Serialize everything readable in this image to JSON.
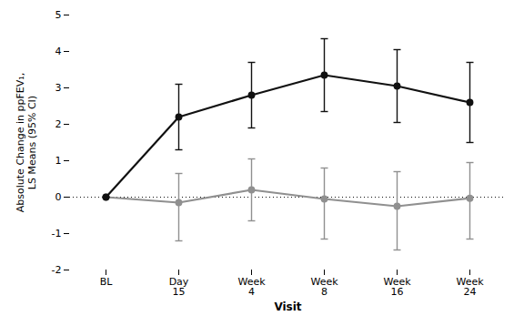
{
  "chart_data": {
    "type": "line",
    "categories": [
      "BL",
      "Day\n15",
      "Week\n4",
      "Week\n8",
      "Week\n16",
      "Week\n24"
    ],
    "series": [
      {
        "color": "#909090",
        "marker": "circle",
        "line_style": "solid",
        "values": [
          0.0,
          -0.15,
          0.2,
          -0.05,
          -0.25,
          -0.03
        ],
        "upper": [
          0.0,
          0.65,
          1.05,
          0.8,
          0.7,
          0.95
        ],
        "lower": [
          0.0,
          -1.2,
          -0.65,
          -1.15,
          -1.45,
          -1.15
        ]
      },
      {
        "color": "#111111",
        "marker": "circle",
        "line_style": "solid",
        "values": [
          0.0,
          2.2,
          2.8,
          3.35,
          3.05,
          2.6
        ],
        "upper": [
          0.0,
          3.1,
          3.7,
          4.35,
          4.05,
          3.7
        ],
        "lower": [
          0.0,
          1.3,
          1.9,
          2.35,
          2.05,
          1.5
        ]
      }
    ],
    "reference_lines": [
      {
        "y": 0,
        "line_style": "dotted",
        "color": "#111111"
      }
    ],
    "xlabel": "Visit",
    "ylabel": "Absolute Change in ppFEV₁,\nLS Means (95% CI)",
    "ylim": [
      -2,
      5
    ],
    "yticks": [
      -2,
      -1,
      0,
      1,
      2,
      3,
      4,
      5
    ],
    "grid": false
  }
}
